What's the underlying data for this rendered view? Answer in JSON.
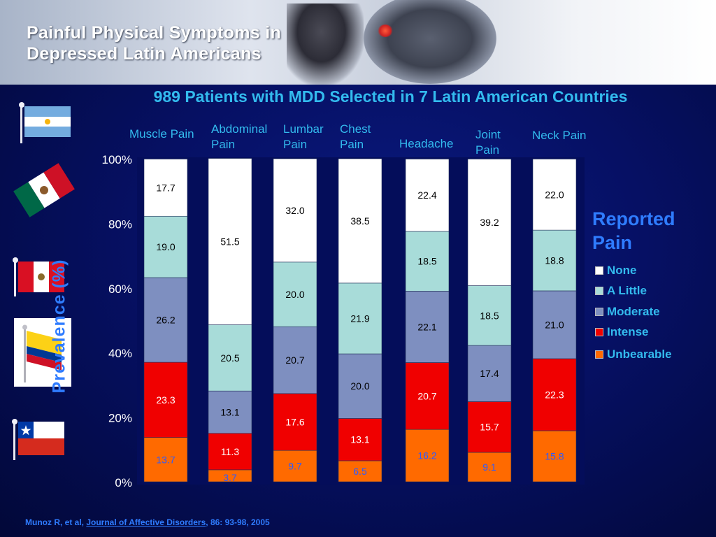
{
  "header": {
    "title_line1": "Painful Physical Symptoms in",
    "title_line2": "Depressed Latin Americans"
  },
  "flags": [
    "argentina-flag",
    "mexico-flag",
    "peru-flag",
    "colombia-flag",
    "chile-flag"
  ],
  "colors": {
    "background": "#061064",
    "text_accent": "#33bbee",
    "label_blue": "#2f7cff"
  },
  "citation": {
    "authors": "Munoz R, et al, ",
    "journal": "Journal of Affective Disorders",
    "rest": ", 86: 93-98, 2005"
  },
  "legend": {
    "title_line1": "Reported",
    "title_line2": "Pain",
    "items": [
      {
        "label": "None",
        "color": "#ffffff"
      },
      {
        "label": "A Little",
        "color": "#a8dcd9"
      },
      {
        "label": "Moderate",
        "color": "#7e8fc0"
      },
      {
        "label": "Intense",
        "color": "#f00000"
      },
      {
        "label": "Unbearable",
        "color": "#ff6a00"
      }
    ]
  },
  "chart_data": {
    "type": "bar",
    "stacked": true,
    "title": "989 Patients with MDD Selected in 7 Latin American Countries",
    "ylabel": "Prevalence (%)",
    "ylim": [
      0,
      100
    ],
    "yticks": [
      "0%",
      "20%",
      "40%",
      "60%",
      "80%",
      "100%"
    ],
    "categories": [
      [
        "Muscle Pain"
      ],
      [
        "Abdominal",
        "Pain"
      ],
      [
        "Lumbar",
        "Pain"
      ],
      [
        "Chest",
        "Pain"
      ],
      [
        "Headache"
      ],
      [
        "Joint",
        "Pain"
      ],
      [
        "Neck Pain"
      ]
    ],
    "series": [
      {
        "name": "Unbearable",
        "color": "#ff6a00",
        "label_color": "#2d5bff",
        "values": [
          13.7,
          3.7,
          9.7,
          6.5,
          16.2,
          9.1,
          15.8
        ]
      },
      {
        "name": "Intense",
        "color": "#f00000",
        "label_color": "#ffffff",
        "values": [
          23.3,
          11.3,
          17.6,
          13.1,
          20.7,
          15.7,
          22.3
        ]
      },
      {
        "name": "Moderate",
        "color": "#7e8fc0",
        "label_color": "#000000",
        "values": [
          26.2,
          13.1,
          20.7,
          20.0,
          22.1,
          17.4,
          21.0
        ]
      },
      {
        "name": "A Little",
        "color": "#a8dcd9",
        "label_color": "#000000",
        "values": [
          19.0,
          20.5,
          20.0,
          21.9,
          18.5,
          18.5,
          18.8
        ]
      },
      {
        "name": "None",
        "color": "#ffffff",
        "label_color": "#000000",
        "values": [
          17.7,
          51.5,
          32.0,
          38.5,
          22.4,
          39.2,
          22.0
        ]
      }
    ]
  }
}
